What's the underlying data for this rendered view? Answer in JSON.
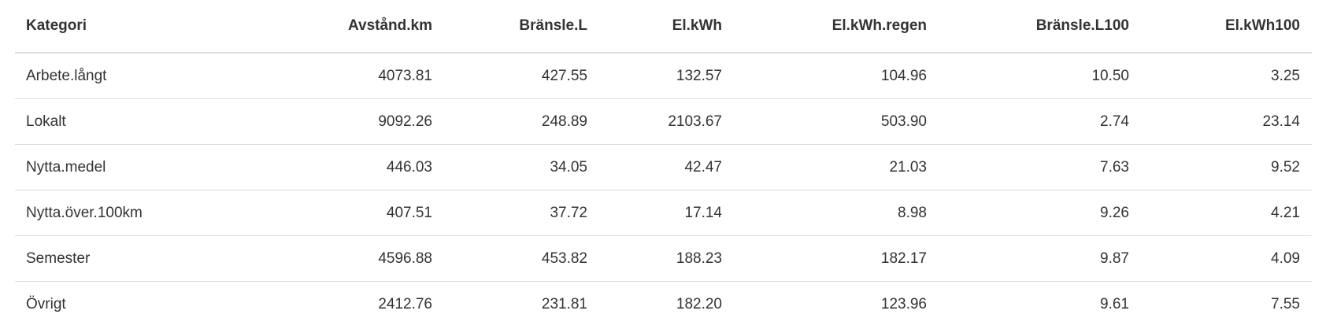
{
  "table": {
    "header": [
      "Kategori",
      "Avstånd.km",
      "Bränsle.L",
      "El.kWh",
      "El.kWh.regen",
      "Bränsle.L100",
      "El.kWh100"
    ],
    "rows": [
      [
        "Arbete.långt",
        "4073.81",
        "427.55",
        "132.57",
        "104.96",
        "10.50",
        "3.25"
      ],
      [
        "Lokalt",
        "9092.26",
        "248.89",
        "2103.67",
        "503.90",
        "2.74",
        "23.14"
      ],
      [
        "Nytta.medel",
        "446.03",
        "34.05",
        "42.47",
        "21.03",
        "7.63",
        "9.52"
      ],
      [
        "Nytta.över.100km",
        "407.51",
        "37.72",
        "17.14",
        "8.98",
        "9.26",
        "4.21"
      ],
      [
        "Semester",
        "4596.88",
        "453.82",
        "188.23",
        "182.17",
        "9.87",
        "4.09"
      ],
      [
        "Övrigt",
        "2412.76",
        "231.81",
        "182.20",
        "123.96",
        "9.61",
        "7.55"
      ]
    ]
  }
}
